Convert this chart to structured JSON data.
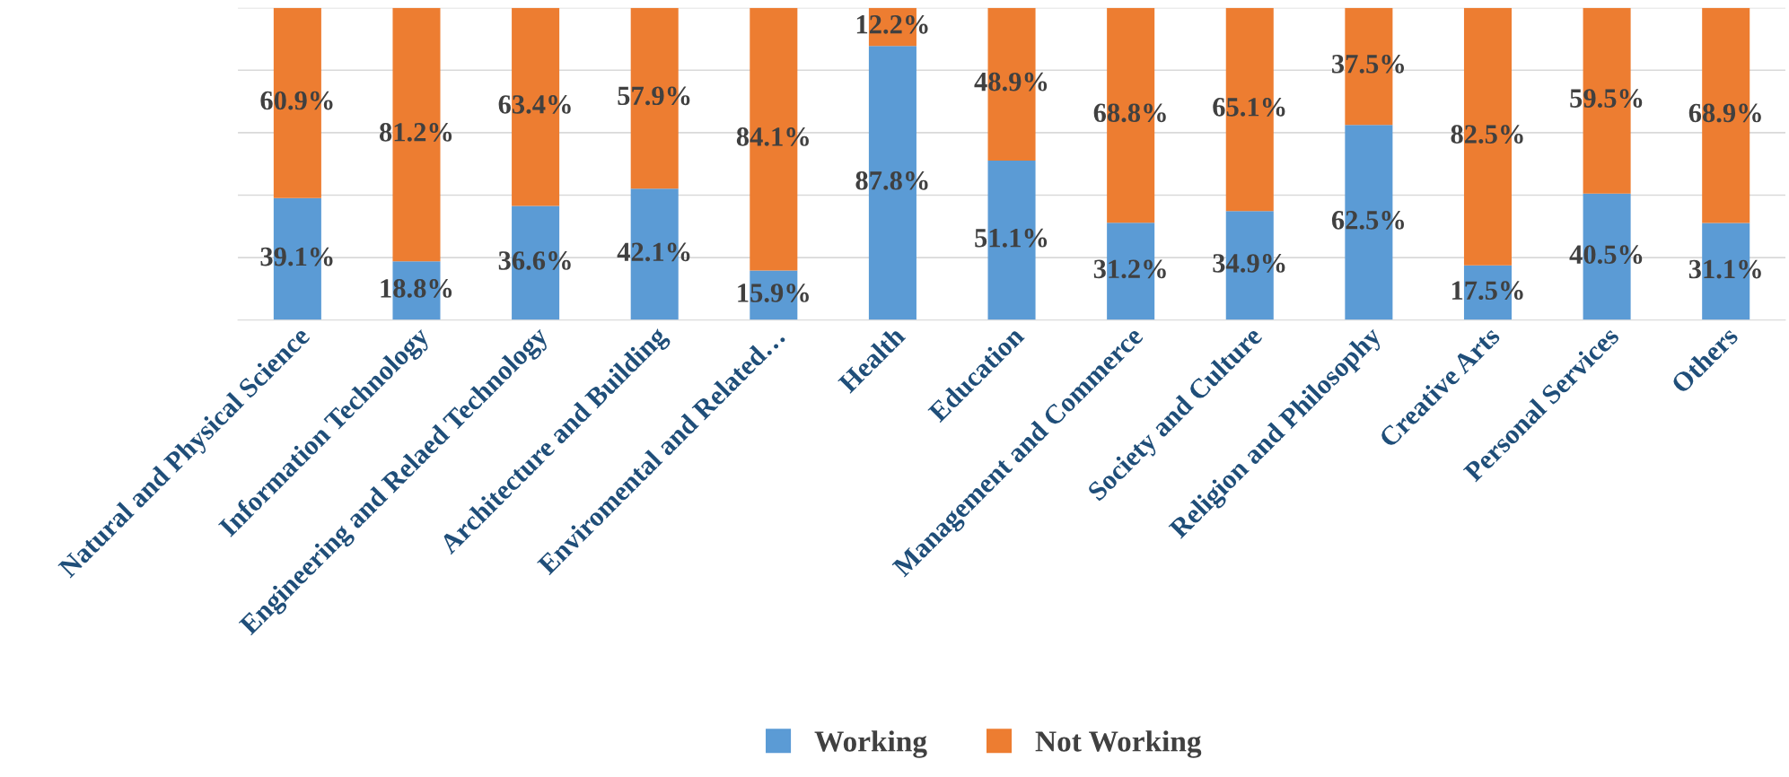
{
  "chart_data": {
    "type": "bar",
    "stacked": true,
    "legend": "bottom",
    "grid": "y",
    "categories": [
      "Natural and Physical Science",
      "Information Technology",
      "Engineering and Relaed Technology",
      "Architecture and Building",
      "Enviromental and Related…",
      "Health",
      "Education",
      "Management and Commerce",
      "Society and Culture",
      "Religion and Philosophy",
      "Creative Arts",
      "Personal Services",
      "Others"
    ],
    "series": [
      {
        "name": "Working",
        "color": "#5b9bd5",
        "values": [
          39.1,
          18.8,
          36.6,
          42.1,
          15.9,
          87.8,
          51.1,
          31.2,
          34.9,
          62.5,
          17.5,
          40.5,
          31.1
        ],
        "value_labels": [
          "39.1%",
          "18.8%",
          "36.6%",
          "42.1%",
          "15.9%",
          "87.8%",
          "51.1%",
          "31.2%",
          "34.9%",
          "62.5%",
          "17.5%",
          "40.5%",
          "31.1%"
        ]
      },
      {
        "name": "Not Working",
        "color": "#ed7d31",
        "values": [
          60.9,
          81.2,
          63.4,
          57.9,
          84.1,
          12.2,
          48.9,
          68.8,
          65.1,
          37.5,
          82.5,
          59.5,
          68.9
        ],
        "value_labels": [
          "60.9%",
          "81.2%",
          "63.4%",
          "57.9%",
          "84.1%",
          "12.2%",
          "48.9%",
          "68.8%",
          "65.1%",
          "37.5%",
          "82.5%",
          "59.5%",
          "68.9%"
        ]
      }
    ]
  }
}
